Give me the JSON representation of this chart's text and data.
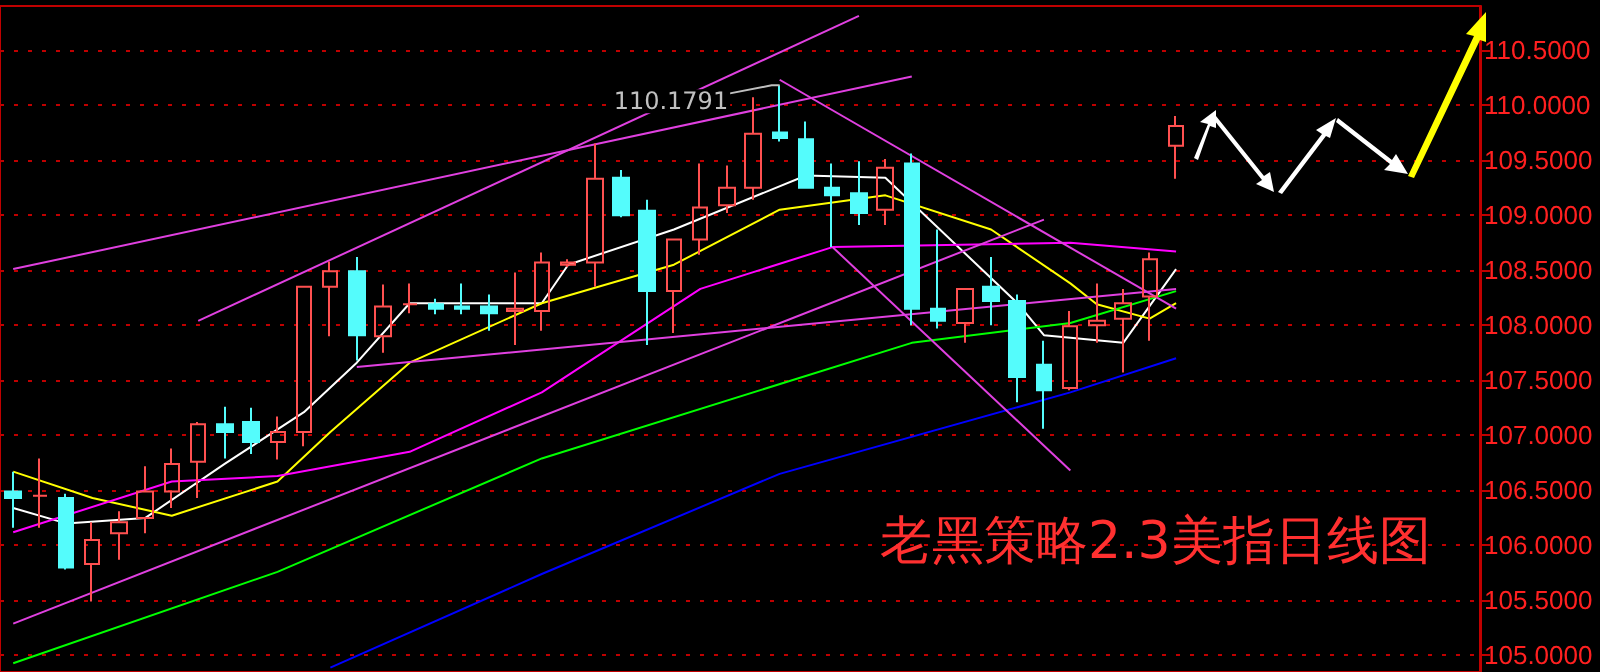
{
  "chart_data": {
    "type": "candlestick",
    "title": "老黑策略2.3美指日线图",
    "categories": [
      null,
      null,
      null,
      null,
      null,
      null,
      null,
      null,
      null,
      null,
      null,
      null,
      null,
      null,
      null,
      null,
      null,
      null,
      null,
      null,
      null,
      null,
      null,
      null,
      null,
      null,
      null,
      null,
      null,
      null,
      null,
      null,
      null,
      null,
      null,
      null,
      null,
      null,
      null,
      null,
      null,
      null,
      null,
      null,
      null,
      null,
      null,
      null,
      null,
      null,
      null,
      null,
      null,
      null,
      null,
      null
    ],
    "ylim": [
      104.85,
      110.9
    ],
    "yticks": [
      {
        "value": 105,
        "label": "105.0000"
      },
      {
        "value": 105.5,
        "label": "105.5000"
      },
      {
        "value": 106,
        "label": "106.0000"
      },
      {
        "value": 106.5,
        "label": "106.5000"
      },
      {
        "value": 107,
        "label": "107.0000"
      },
      {
        "value": 107.5,
        "label": "107.5000"
      },
      {
        "value": 108,
        "label": "108.0000"
      },
      {
        "value": 108.5,
        "label": "108.5000"
      },
      {
        "value": 109,
        "label": "109.0000"
      },
      {
        "value": 109.5,
        "label": "109.5000"
      },
      {
        "value": 110,
        "label": "110.0000"
      },
      {
        "value": 110.5,
        "label": "110.5000"
      }
    ],
    "grid": "y",
    "annotations": [
      "110.1791"
    ],
    "series": [
      {
        "colors": [
          "#54fcfc",
          "#ff5050",
          "#54fcfc",
          "#ff5050",
          "#ff5050",
          "#ff5050",
          "#ff5050",
          "#ff5050",
          "#54fcfc",
          "#54fcfc",
          "#ff5050",
          "#ff5050",
          "#ff5050",
          "#54fcfc",
          "#ff5050",
          "#ff5050",
          "#54fcfc",
          "#54fcfc",
          "#54fcfc",
          "#ff5050",
          "#ff5050",
          "#ff5050",
          "#ff5050",
          "#54fcfc",
          "#54fcfc",
          "#ff5050",
          "#ff5050",
          "#ff5050",
          "#ff5050",
          "#54fcfc",
          "#54fcfc",
          "#54fcfc",
          "#54fcfc",
          "#ff5050",
          "#54fcfc",
          "#54fcfc",
          "#ff5050",
          "#54fcfc",
          "#54fcfc",
          "#54fcfc",
          "#ff5050",
          "#ff5050",
          "#ff5050",
          "#ff5050",
          "#ff5050",
          null,
          null,
          null,
          null,
          null,
          null,
          null,
          null,
          null,
          null,
          null
        ],
        "ohlc": [
          [
            106.49,
            106.67,
            106.16,
            106.43
          ],
          [
            106.45,
            106.79,
            106.16,
            106.45
          ],
          [
            106.43,
            106.47,
            105.78,
            105.8
          ],
          [
            105.83,
            106.21,
            105.49,
            106.05
          ],
          [
            106.11,
            106.31,
            105.87,
            106.21
          ],
          [
            106.25,
            106.72,
            106.11,
            106.49
          ],
          [
            106.49,
            106.88,
            106.34,
            106.74
          ],
          [
            106.76,
            107.12,
            106.43,
            107.1
          ],
          [
            107.1,
            107.26,
            106.79,
            107.03
          ],
          [
            107.12,
            107.25,
            106.83,
            106.94
          ],
          [
            106.94,
            107.17,
            106.78,
            107.03
          ],
          [
            107.03,
            108.35,
            106.9,
            108.35
          ],
          [
            108.35,
            108.58,
            107.9,
            108.49
          ],
          [
            108.49,
            108.62,
            107.68,
            107.91
          ],
          [
            107.9,
            108.37,
            107.75,
            108.17
          ],
          [
            108.19,
            108.38,
            108.11,
            108.19
          ],
          [
            108.19,
            108.24,
            108.1,
            108.15
          ],
          [
            108.17,
            108.38,
            108.1,
            108.15
          ],
          [
            108.17,
            108.28,
            107.95,
            108.11
          ],
          [
            108.13,
            108.48,
            107.82,
            108.15
          ],
          [
            108.13,
            108.66,
            107.95,
            108.57
          ],
          [
            108.55,
            108.6,
            108.53,
            108.57
          ],
          [
            108.57,
            109.65,
            108.35,
            109.33
          ],
          [
            109.34,
            109.41,
            108.98,
            109.0
          ],
          [
            109.04,
            109.14,
            107.82,
            108.31
          ],
          [
            108.31,
            108.78,
            107.93,
            108.78
          ],
          [
            108.78,
            109.47,
            108.64,
            109.07
          ],
          [
            109.09,
            109.45,
            109.02,
            109.25
          ],
          [
            109.25,
            110.07,
            109.14,
            109.74
          ],
          [
            109.75,
            110.1791,
            109.67,
            109.7
          ],
          [
            109.69,
            109.85,
            109.25,
            109.25
          ],
          [
            109.25,
            109.47,
            108.71,
            109.18
          ],
          [
            109.2,
            109.49,
            108.91,
            109.02
          ],
          [
            109.05,
            109.51,
            108.91,
            109.43
          ],
          [
            109.47,
            109.56,
            108.0,
            108.15
          ],
          [
            108.15,
            108.87,
            107.97,
            108.04
          ],
          [
            108.02,
            108.33,
            107.84,
            108.33
          ],
          [
            108.35,
            108.62,
            108.0,
            108.22
          ],
          [
            108.22,
            108.28,
            107.3,
            107.53
          ],
          [
            107.64,
            107.86,
            107.06,
            107.41
          ],
          [
            107.43,
            108.13,
            107.41,
            107.99
          ],
          [
            108.0,
            108.38,
            107.84,
            108.04
          ],
          [
            108.06,
            108.33,
            107.57,
            108.2
          ],
          [
            108.26,
            108.66,
            107.86,
            108.6
          ],
          [
            109.63,
            109.9,
            109.33,
            109.81
          ],
          null,
          null,
          null,
          null,
          null,
          null,
          null,
          null,
          null,
          null,
          null
        ]
      },
      {
        "type": "line",
        "color": "#ffffff",
        "values": [
          106.34,
          null,
          106.2,
          null,
          null,
          106.25,
          null,
          null,
          106.74,
          null,
          null,
          107.21,
          null,
          107.66,
          null,
          108.2,
          null,
          null,
          null,
          null,
          108.2,
          108.55,
          null,
          null,
          null,
          108.87,
          null,
          null,
          null,
          null,
          109.36,
          null,
          null,
          109.34,
          null,
          null,
          null,
          null,
          108.2,
          107.91,
          null,
          null,
          107.84,
          null,
          108.51,
          null,
          null,
          null,
          null,
          null,
          null,
          null,
          null,
          null,
          null,
          null
        ]
      },
      {
        "type": "line",
        "color": "#ffff00",
        "values": [
          106.67,
          null,
          null,
          106.43,
          null,
          null,
          106.27,
          null,
          null,
          null,
          106.58,
          null,
          107.03,
          null,
          null,
          107.66,
          null,
          null,
          null,
          null,
          108.2,
          null,
          null,
          null,
          null,
          108.55,
          null,
          null,
          null,
          109.05,
          null,
          null,
          null,
          109.18,
          null,
          null,
          null,
          108.87,
          null,
          null,
          108.38,
          108.19,
          null,
          108.06,
          108.2,
          null,
          null,
          null,
          null,
          null,
          null,
          null,
          null,
          null,
          null,
          null
        ]
      },
      {
        "type": "line",
        "color": "#ff00ff",
        "values": [
          106.12,
          null,
          null,
          null,
          null,
          null,
          106.58,
          null,
          null,
          null,
          106.63,
          null,
          null,
          null,
          null,
          106.85,
          null,
          null,
          null,
          null,
          107.39,
          null,
          null,
          null,
          null,
          null,
          108.33,
          null,
          null,
          null,
          null,
          108.71,
          null,
          null,
          null,
          null,
          null,
          null,
          null,
          null,
          108.75,
          null,
          null,
          null,
          108.67,
          null,
          null,
          null,
          null,
          null,
          null,
          null,
          null,
          null,
          null,
          null
        ]
      },
      {
        "type": "line",
        "color": "#00ff00",
        "values": [
          104.93,
          null,
          null,
          null,
          null,
          null,
          null,
          null,
          null,
          null,
          105.76,
          null,
          null,
          null,
          null,
          null,
          null,
          null,
          null,
          null,
          106.79,
          null,
          null,
          null,
          null,
          null,
          null,
          null,
          null,
          null,
          null,
          null,
          null,
          null,
          107.84,
          null,
          null,
          null,
          null,
          null,
          108.02,
          null,
          null,
          null,
          108.31,
          null,
          null,
          null,
          null,
          null,
          null,
          null,
          null,
          null,
          null,
          null
        ]
      },
      {
        "type": "line",
        "color": "#0000ff",
        "values": [
          null,
          null,
          null,
          null,
          null,
          null,
          null,
          null,
          null,
          null,
          null,
          null,
          104.89,
          null,
          null,
          null,
          null,
          null,
          null,
          null,
          105.74,
          null,
          null,
          null,
          null,
          null,
          null,
          null,
          null,
          106.65,
          null,
          null,
          null,
          null,
          null,
          null,
          null,
          null,
          null,
          null,
          107.39,
          null,
          null,
          null,
          107.7,
          null,
          null,
          null,
          null,
          null,
          null,
          null,
          null,
          null,
          null,
          null
        ]
      },
      {
        "type": "line",
        "color": "#e040e0",
        "values": [
          108.51,
          null,
          null,
          null,
          null,
          null,
          null,
          null,
          null,
          null,
          null,
          null,
          null,
          null,
          null,
          null,
          null,
          null,
          null,
          null,
          null,
          null,
          null,
          null,
          null,
          null,
          null,
          null,
          null,
          null,
          null,
          null,
          null,
          null,
          110.26,
          null,
          null,
          null,
          null,
          null,
          null,
          null,
          null,
          null,
          null,
          null,
          null,
          null,
          null,
          null,
          null,
          null,
          null,
          null,
          null,
          null
        ]
      },
      {
        "type": "line",
        "color": "#e040e0",
        "values": [
          null,
          null,
          null,
          null,
          null,
          null,
          null,
          108.04,
          null,
          null,
          null,
          null,
          null,
          null,
          null,
          null,
          null,
          null,
          null,
          null,
          null,
          null,
          null,
          null,
          null,
          null,
          null,
          null,
          null,
          null,
          null,
          null,
          110.81,
          null,
          null,
          null,
          null,
          null,
          null,
          null,
          null,
          null,
          null,
          null,
          null,
          null,
          null,
          null,
          null,
          null,
          null,
          null,
          null,
          null,
          null,
          null
        ]
      },
      {
        "type": "line",
        "color": "#e040e0",
        "values": [
          null,
          null,
          null,
          null,
          null,
          null,
          null,
          null,
          null,
          null,
          null,
          null,
          null,
          null,
          null,
          null,
          null,
          null,
          null,
          null,
          null,
          null,
          null,
          null,
          null,
          null,
          null,
          null,
          null,
          110.23,
          null,
          null,
          null,
          null,
          null,
          null,
          null,
          null,
          null,
          null,
          null,
          null,
          null,
          null,
          108.15,
          null,
          null,
          null,
          null,
          null,
          null,
          null,
          null,
          null,
          null,
          null
        ]
      },
      {
        "type": "line",
        "color": "#e040e0",
        "values": [
          null,
          null,
          null,
          null,
          null,
          null,
          null,
          null,
          null,
          null,
          null,
          null,
          null,
          null,
          null,
          null,
          null,
          null,
          null,
          null,
          null,
          null,
          null,
          null,
          null,
          null,
          null,
          null,
          null,
          null,
          null,
          108.71,
          null,
          null,
          null,
          null,
          null,
          null,
          null,
          null,
          106.68,
          null,
          null,
          null,
          null,
          null,
          null,
          null,
          null,
          null,
          null,
          null,
          null,
          null,
          null,
          null
        ]
      },
      {
        "type": "line",
        "color": "#e040e0",
        "values": [
          null,
          null,
          null,
          null,
          null,
          null,
          null,
          null,
          null,
          null,
          null,
          null,
          null,
          107.62,
          null,
          null,
          null,
          null,
          null,
          null,
          null,
          null,
          null,
          null,
          null,
          null,
          null,
          null,
          null,
          null,
          null,
          null,
          null,
          null,
          null,
          null,
          null,
          null,
          null,
          null,
          null,
          null,
          null,
          null,
          108.33,
          null,
          null,
          null,
          null,
          null,
          null,
          null,
          null,
          null,
          null,
          null
        ]
      },
      {
        "type": "line",
        "color": "#e040e0",
        "values": [
          105.29,
          null,
          null,
          null,
          null,
          null,
          null,
          null,
          null,
          null,
          null,
          null,
          null,
          null,
          null,
          null,
          null,
          null,
          null,
          null,
          null,
          null,
          null,
          null,
          null,
          null,
          null,
          null,
          null,
          null,
          null,
          null,
          null,
          null,
          null,
          null,
          null,
          null,
          null,
          108.96,
          null,
          null,
          null,
          null,
          null,
          null,
          null,
          null,
          null,
          null,
          null,
          null,
          null,
          null,
          null,
          null
        ]
      }
    ]
  }
}
